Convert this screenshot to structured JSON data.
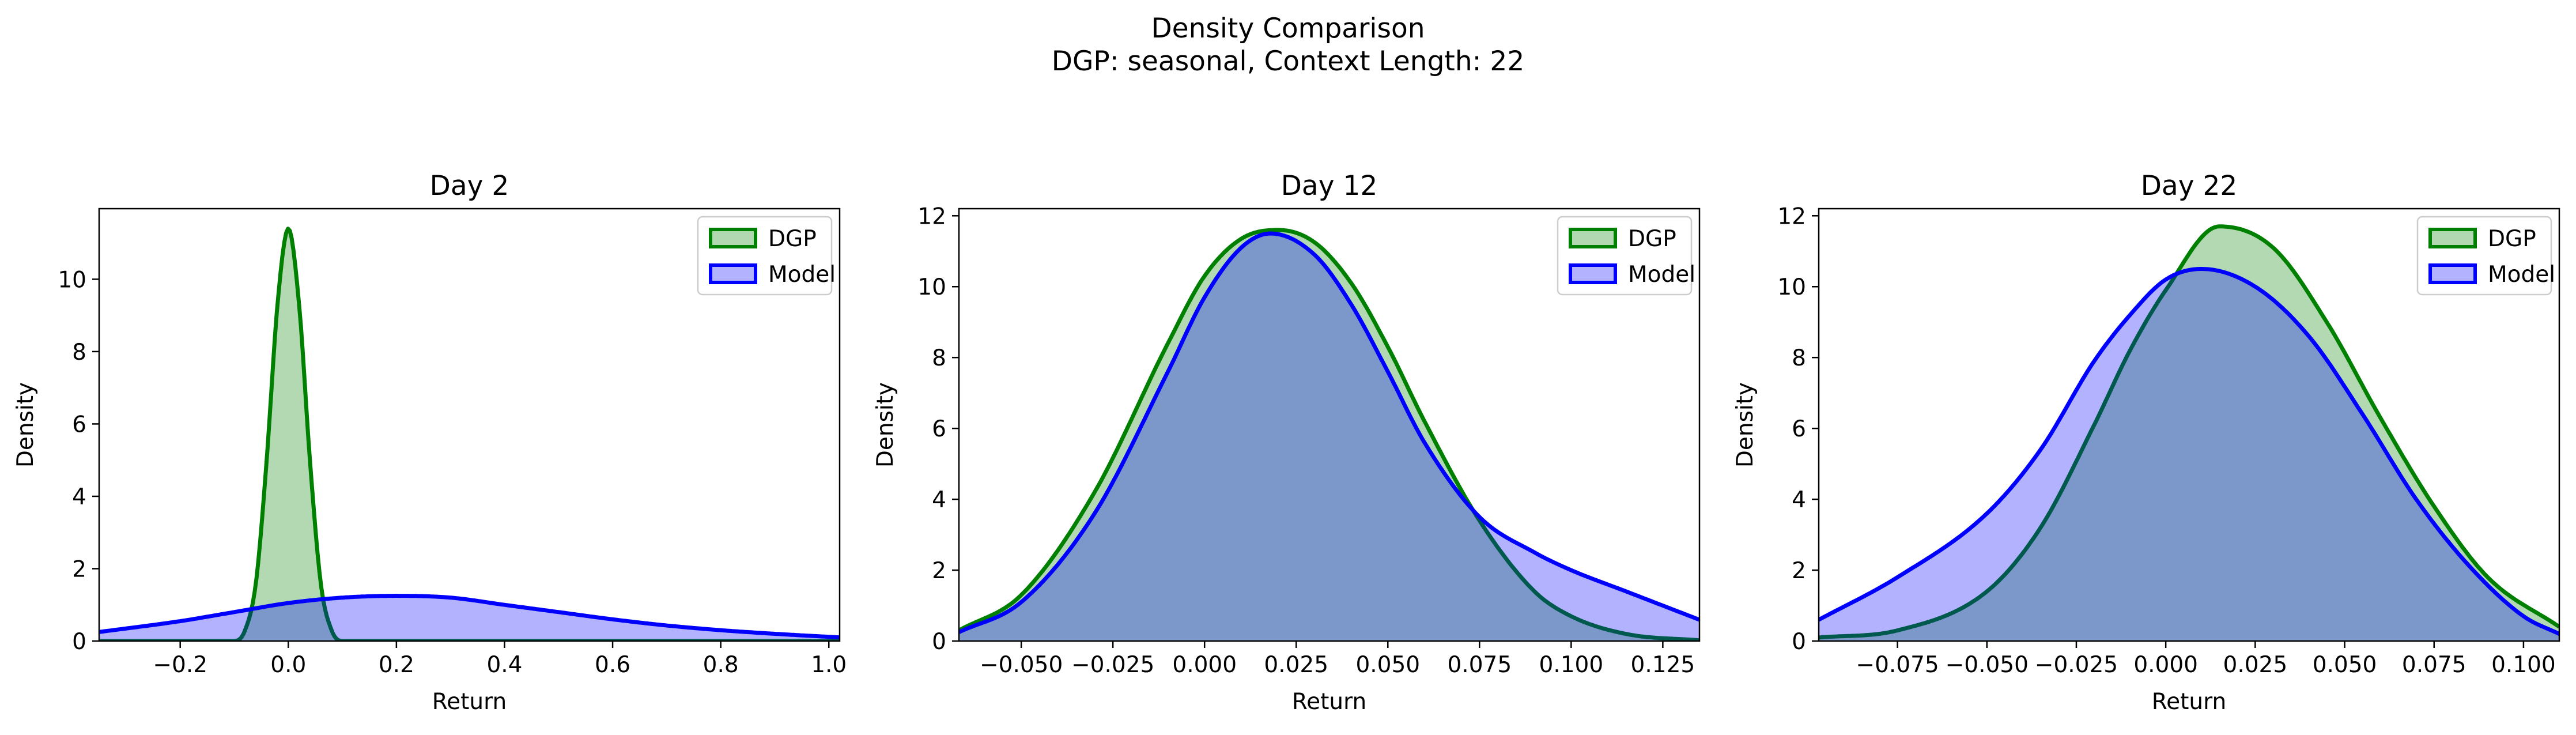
{
  "suptitle": [
    "Density Comparison",
    "DGP: seasonal, Context Length: 22"
  ],
  "colors": {
    "dgp_line": "#008000",
    "dgp_fill": "#b2d8b2",
    "model_line": "#0000ff",
    "model_fill": "#b2b2ff",
    "overlap_fill": "#7f99c8"
  },
  "chart_data": [
    {
      "type": "area",
      "title": "Day 2",
      "xlabel": "Return",
      "ylabel": "Density",
      "xlim": [
        -0.35,
        1.02
      ],
      "ylim": [
        0,
        11.95
      ],
      "xticks": [
        -0.2,
        0.0,
        0.2,
        0.4,
        0.6,
        0.8,
        1.0
      ],
      "xtick_labels": [
        "−0.2",
        "0.0",
        "0.2",
        "0.4",
        "0.6",
        "0.8",
        "1.0"
      ],
      "yticks": [
        0,
        2,
        4,
        6,
        8,
        10
      ],
      "ytick_labels": [
        "0",
        "2",
        "4",
        "6",
        "8",
        "10"
      ],
      "legend": "top-right",
      "series": [
        {
          "name": "DGP",
          "x": [
            -0.35,
            -0.1,
            -0.08,
            -0.06,
            -0.04,
            -0.02,
            0.0,
            0.02,
            0.04,
            0.06,
            0.08,
            0.1,
            1.02
          ],
          "y": [
            0,
            0,
            0.3,
            1.6,
            5.0,
            9.3,
            11.4,
            9.3,
            5.0,
            1.6,
            0.3,
            0,
            0
          ]
        },
        {
          "name": "Model",
          "x": [
            -0.35,
            -0.2,
            -0.1,
            0.0,
            0.1,
            0.2,
            0.3,
            0.4,
            0.5,
            0.6,
            0.7,
            0.8,
            0.9,
            1.02
          ],
          "y": [
            0.25,
            0.55,
            0.8,
            1.05,
            1.2,
            1.25,
            1.2,
            1.0,
            0.8,
            0.6,
            0.43,
            0.3,
            0.2,
            0.1
          ]
        }
      ]
    },
    {
      "type": "area",
      "title": "Day 12",
      "xlabel": "Return",
      "ylabel": "Density",
      "xlim": [
        -0.067,
        0.135
      ],
      "ylim": [
        0,
        12.2
      ],
      "xticks": [
        -0.05,
        -0.025,
        0.0,
        0.025,
        0.05,
        0.075,
        0.1,
        0.125
      ],
      "xtick_labels": [
        "−0.050",
        "−0.025",
        "0.000",
        "0.025",
        "0.050",
        "0.075",
        "0.100",
        "0.125"
      ],
      "yticks": [
        0,
        2,
        4,
        6,
        8,
        10,
        12
      ],
      "ytick_labels": [
        "0",
        "2",
        "4",
        "6",
        "8",
        "10",
        "12"
      ],
      "legend": "top-right",
      "series": [
        {
          "name": "DGP",
          "x": [
            -0.067,
            -0.05,
            -0.03,
            -0.01,
            0.0,
            0.01,
            0.02,
            0.03,
            0.04,
            0.05,
            0.06,
            0.075,
            0.09,
            0.1,
            0.115,
            0.135
          ],
          "y": [
            0.3,
            1.3,
            4.2,
            8.4,
            10.3,
            11.35,
            11.6,
            11.25,
            10.1,
            8.3,
            6.2,
            3.4,
            1.4,
            0.7,
            0.2,
            0.02
          ]
        },
        {
          "name": "Model",
          "x": [
            -0.067,
            -0.05,
            -0.03,
            -0.01,
            0.0,
            0.01,
            0.018,
            0.03,
            0.04,
            0.05,
            0.06,
            0.075,
            0.09,
            0.1,
            0.115,
            0.135
          ],
          "y": [
            0.25,
            1.1,
            3.6,
            7.6,
            9.7,
            11.1,
            11.5,
            10.9,
            9.5,
            7.6,
            5.6,
            3.5,
            2.5,
            2.0,
            1.4,
            0.6
          ]
        }
      ]
    },
    {
      "type": "area",
      "title": "Day 22",
      "xlabel": "Return",
      "ylabel": "Density",
      "xlim": [
        -0.097,
        0.11
      ],
      "ylim": [
        0,
        12.2
      ],
      "xticks": [
        -0.075,
        -0.05,
        -0.025,
        0.0,
        0.025,
        0.05,
        0.075,
        0.1
      ],
      "xtick_labels": [
        "−0.075",
        "−0.050",
        "−0.025",
        "0.000",
        "0.025",
        "0.050",
        "0.075",
        "0.100"
      ],
      "yticks": [
        0,
        2,
        4,
        6,
        8,
        10,
        12
      ],
      "ytick_labels": [
        "0",
        "2",
        "4",
        "6",
        "8",
        "10",
        "12"
      ],
      "legend": "top-right",
      "series": [
        {
          "name": "DGP",
          "x": [
            -0.097,
            -0.075,
            -0.05,
            -0.035,
            -0.02,
            -0.01,
            0.0,
            0.015,
            0.03,
            0.045,
            0.06,
            0.075,
            0.09,
            0.11
          ],
          "y": [
            0.1,
            0.3,
            1.4,
            3.2,
            6.1,
            8.2,
            9.9,
            11.7,
            11.1,
            9.0,
            6.3,
            3.8,
            1.8,
            0.4
          ]
        },
        {
          "name": "Model",
          "x": [
            -0.097,
            -0.075,
            -0.05,
            -0.035,
            -0.02,
            -0.01,
            0.0,
            0.01,
            0.025,
            0.04,
            0.055,
            0.07,
            0.085,
            0.1,
            0.11
          ],
          "y": [
            0.6,
            1.8,
            3.6,
            5.4,
            7.9,
            9.2,
            10.2,
            10.5,
            10.0,
            8.6,
            6.4,
            4.0,
            2.1,
            0.7,
            0.2
          ]
        }
      ]
    }
  ]
}
